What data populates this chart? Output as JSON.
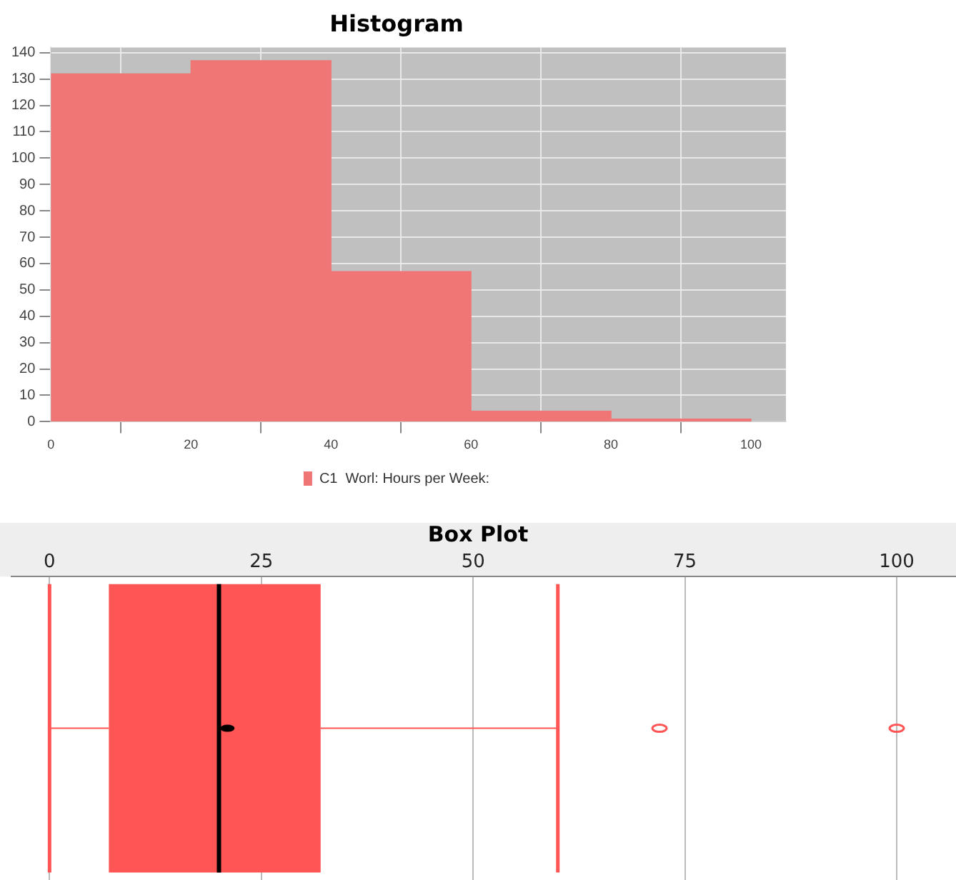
{
  "chart_data": [
    {
      "type": "histogram",
      "title": "Histogram",
      "bins": [
        0,
        20,
        40,
        60,
        80,
        100
      ],
      "series": [
        {
          "name": "C1  Worl: Hours per Week:",
          "color": "#f07575",
          "values": [
            132,
            137,
            57,
            4,
            1
          ]
        }
      ],
      "xlim": [
        0,
        105
      ],
      "xticks": [
        0,
        20,
        40,
        60,
        80,
        100
      ],
      "ylim": [
        0,
        142
      ],
      "yticks": [
        0,
        10,
        20,
        30,
        40,
        50,
        60,
        70,
        80,
        90,
        100,
        110,
        120,
        130,
        140
      ],
      "grid": true,
      "legend": "bottom"
    },
    {
      "type": "box",
      "title": "Box Plot",
      "orientation": "horizontal",
      "categories": [
        null
      ],
      "series": [
        {
          "color": "#ff5555",
          "boxes": [
            {
              "low": 0,
              "q1": 7,
              "median": 20,
              "q3": 32,
              "high": 60,
              "mean": 21,
              "outliers": [
                72,
                100
              ]
            }
          ]
        }
      ],
      "xlim": [
        -4.5,
        107
      ],
      "xticks": [
        0,
        25,
        50,
        75,
        100
      ],
      "grid": "x"
    }
  ]
}
